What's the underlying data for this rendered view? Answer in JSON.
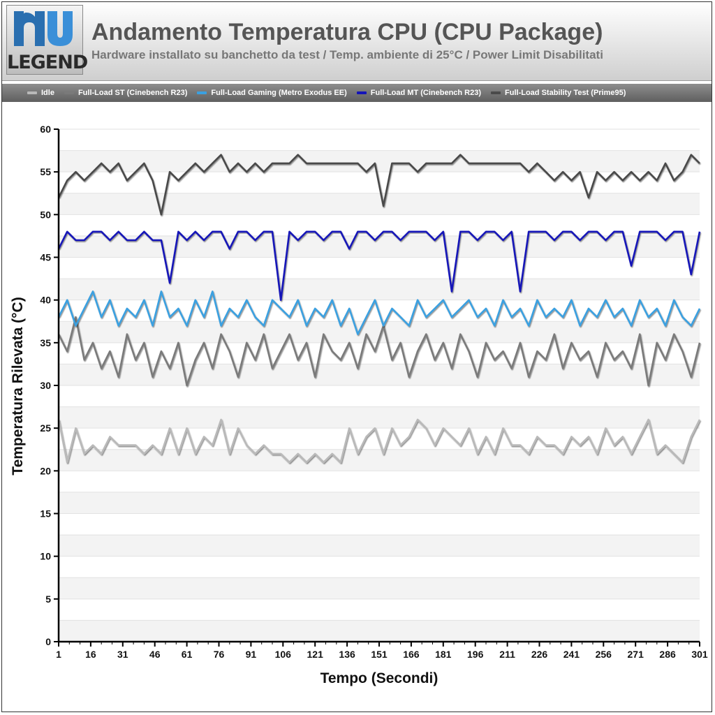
{
  "header": {
    "logo_text": "LEGEND",
    "title": "Andamento Temperatura CPU (CPU Package)",
    "subtitle": "Hardware installato su banchetto da test / Temp. ambiente di 25°C / Power Limit Disabilitati"
  },
  "colors": {
    "idle": "#b9b9b9",
    "st": "#7a7a7a",
    "gaming": "#3aa0e0",
    "mt": "#1414b8",
    "prime": "#4a4a4a"
  },
  "chart_data": {
    "type": "line",
    "xlabel": "Tempo (Secondi)",
    "ylabel": "Temperatura Rilevata (°C)",
    "ylim": [
      0,
      60
    ],
    "yticks": [
      0,
      5,
      10,
      15,
      20,
      25,
      30,
      35,
      40,
      45,
      50,
      55,
      60
    ],
    "xlim": [
      1,
      301
    ],
    "xticks": [
      1,
      16,
      31,
      46,
      61,
      76,
      91,
      106,
      121,
      136,
      151,
      166,
      181,
      196,
      211,
      226,
      241,
      256,
      271,
      286,
      301
    ],
    "grid": true,
    "legend_position": "top",
    "series": [
      {
        "name": "Idle",
        "x": [
          1,
          5,
          9,
          13,
          17,
          21,
          25,
          29,
          33,
          37,
          41,
          45,
          49,
          53,
          57,
          61,
          65,
          69,
          73,
          77,
          81,
          85,
          89,
          93,
          97,
          101,
          105,
          109,
          113,
          117,
          121,
          125,
          129,
          133,
          137,
          141,
          145,
          149,
          153,
          157,
          161,
          165,
          169,
          173,
          177,
          181,
          185,
          189,
          193,
          197,
          201,
          205,
          209,
          213,
          217,
          221,
          225,
          229,
          233,
          237,
          241,
          245,
          249,
          253,
          257,
          261,
          265,
          269,
          273,
          277,
          281,
          285,
          289,
          293,
          297,
          301
        ],
        "values": [
          26,
          21,
          25,
          22,
          23,
          22,
          24,
          23,
          23,
          23,
          22,
          23,
          22,
          25,
          22,
          25,
          22,
          24,
          23,
          26,
          22,
          25,
          23,
          22,
          23,
          22,
          22,
          21,
          22,
          21,
          22,
          21,
          22,
          21,
          25,
          22,
          24,
          25,
          22,
          25,
          23,
          24,
          26,
          25,
          23,
          25,
          24,
          23,
          25,
          22,
          24,
          22,
          25,
          23,
          23,
          22,
          24,
          23,
          23,
          22,
          24,
          23,
          24,
          22,
          25,
          23,
          24,
          22,
          24,
          26,
          22,
          23,
          22,
          21,
          24,
          26
        ]
      },
      {
        "name": "Full-Load ST (Cinebench R23)",
        "x": [
          1,
          5,
          9,
          13,
          17,
          21,
          25,
          29,
          33,
          37,
          41,
          45,
          49,
          53,
          57,
          61,
          65,
          69,
          73,
          77,
          81,
          85,
          89,
          93,
          97,
          101,
          105,
          109,
          113,
          117,
          121,
          125,
          129,
          133,
          137,
          141,
          145,
          149,
          153,
          157,
          161,
          165,
          169,
          173,
          177,
          181,
          185,
          189,
          193,
          197,
          201,
          205,
          209,
          213,
          217,
          221,
          225,
          229,
          233,
          237,
          241,
          245,
          249,
          253,
          257,
          261,
          265,
          269,
          273,
          277,
          281,
          285,
          289,
          293,
          297,
          301
        ],
        "values": [
          36,
          34,
          38,
          33,
          35,
          32,
          34,
          31,
          36,
          33,
          35,
          31,
          34,
          32,
          35,
          30,
          33,
          35,
          32,
          36,
          34,
          31,
          35,
          33,
          36,
          32,
          34,
          36,
          33,
          35,
          31,
          36,
          34,
          33,
          35,
          32,
          36,
          34,
          37,
          33,
          35,
          31,
          34,
          36,
          33,
          35,
          32,
          36,
          34,
          31,
          35,
          33,
          34,
          32,
          35,
          31,
          34,
          33,
          36,
          32,
          35,
          33,
          34,
          31,
          35,
          33,
          34,
          32,
          36,
          30,
          35,
          33,
          36,
          34,
          31,
          35
        ]
      },
      {
        "name": "Full-Load Gaming (Metro Exodus EE)",
        "x": [
          1,
          5,
          9,
          13,
          17,
          21,
          25,
          29,
          33,
          37,
          41,
          45,
          49,
          53,
          57,
          61,
          65,
          69,
          73,
          77,
          81,
          85,
          89,
          93,
          97,
          101,
          105,
          109,
          113,
          117,
          121,
          125,
          129,
          133,
          137,
          141,
          145,
          149,
          153,
          157,
          161,
          165,
          169,
          173,
          177,
          181,
          185,
          189,
          193,
          197,
          201,
          205,
          209,
          213,
          217,
          221,
          225,
          229,
          233,
          237,
          241,
          245,
          249,
          253,
          257,
          261,
          265,
          269,
          273,
          277,
          281,
          285,
          289,
          293,
          297,
          301
        ],
        "values": [
          38,
          40,
          37,
          39,
          41,
          38,
          40,
          37,
          39,
          38,
          40,
          37,
          41,
          38,
          39,
          37,
          40,
          38,
          41,
          37,
          39,
          38,
          40,
          38,
          37,
          40,
          39,
          38,
          40,
          37,
          39,
          38,
          40,
          37,
          39,
          36,
          38,
          40,
          37,
          39,
          38,
          37,
          40,
          38,
          39,
          40,
          38,
          39,
          40,
          38,
          39,
          37,
          40,
          38,
          39,
          37,
          40,
          38,
          39,
          38,
          40,
          37,
          39,
          38,
          40,
          38,
          39,
          37,
          40,
          38,
          39,
          37,
          40,
          38,
          37,
          39
        ]
      },
      {
        "name": "Full-Load MT (Cinebench R23)",
        "x": [
          1,
          5,
          9,
          13,
          17,
          21,
          25,
          29,
          33,
          37,
          41,
          45,
          49,
          53,
          57,
          61,
          65,
          69,
          73,
          77,
          81,
          85,
          89,
          93,
          97,
          101,
          105,
          109,
          113,
          117,
          121,
          125,
          129,
          133,
          137,
          141,
          145,
          149,
          153,
          157,
          161,
          165,
          169,
          173,
          177,
          181,
          185,
          189,
          193,
          197,
          201,
          205,
          209,
          213,
          217,
          221,
          225,
          229,
          233,
          237,
          241,
          245,
          249,
          253,
          257,
          261,
          265,
          269,
          273,
          277,
          281,
          285,
          289,
          293,
          297,
          301
        ],
        "values": [
          46,
          48,
          47,
          47,
          48,
          48,
          47,
          48,
          47,
          47,
          48,
          47,
          47,
          42,
          48,
          47,
          48,
          47,
          48,
          48,
          46,
          48,
          48,
          47,
          48,
          48,
          40,
          48,
          47,
          48,
          48,
          47,
          48,
          48,
          46,
          48,
          48,
          47,
          48,
          48,
          47,
          48,
          48,
          48,
          47,
          48,
          41,
          48,
          48,
          47,
          48,
          48,
          47,
          48,
          41,
          48,
          48,
          48,
          47,
          48,
          48,
          47,
          48,
          48,
          47,
          48,
          48,
          44,
          48,
          48,
          48,
          47,
          48,
          48,
          43,
          48
        ]
      },
      {
        "name": "Full-Load Stability Test (Prime95)",
        "x": [
          1,
          5,
          9,
          13,
          17,
          21,
          25,
          29,
          33,
          37,
          41,
          45,
          49,
          53,
          57,
          61,
          65,
          69,
          73,
          77,
          81,
          85,
          89,
          93,
          97,
          101,
          105,
          109,
          113,
          117,
          121,
          125,
          129,
          133,
          137,
          141,
          145,
          149,
          153,
          157,
          161,
          165,
          169,
          173,
          177,
          181,
          185,
          189,
          193,
          197,
          201,
          205,
          209,
          213,
          217,
          221,
          225,
          229,
          233,
          237,
          241,
          245,
          249,
          253,
          257,
          261,
          265,
          269,
          273,
          277,
          281,
          285,
          289,
          293,
          297,
          301
        ],
        "values": [
          52,
          54,
          55,
          54,
          55,
          56,
          55,
          56,
          54,
          55,
          56,
          54,
          50,
          55,
          54,
          55,
          56,
          55,
          56,
          57,
          55,
          56,
          55,
          56,
          55,
          56,
          56,
          56,
          57,
          56,
          56,
          56,
          56,
          56,
          56,
          56,
          55,
          56,
          51,
          56,
          56,
          56,
          55,
          56,
          56,
          56,
          56,
          57,
          56,
          56,
          56,
          56,
          56,
          56,
          56,
          55,
          56,
          55,
          54,
          55,
          54,
          55,
          52,
          55,
          54,
          55,
          54,
          55,
          54,
          55,
          54,
          56,
          54,
          55,
          57,
          56
        ]
      }
    ]
  }
}
